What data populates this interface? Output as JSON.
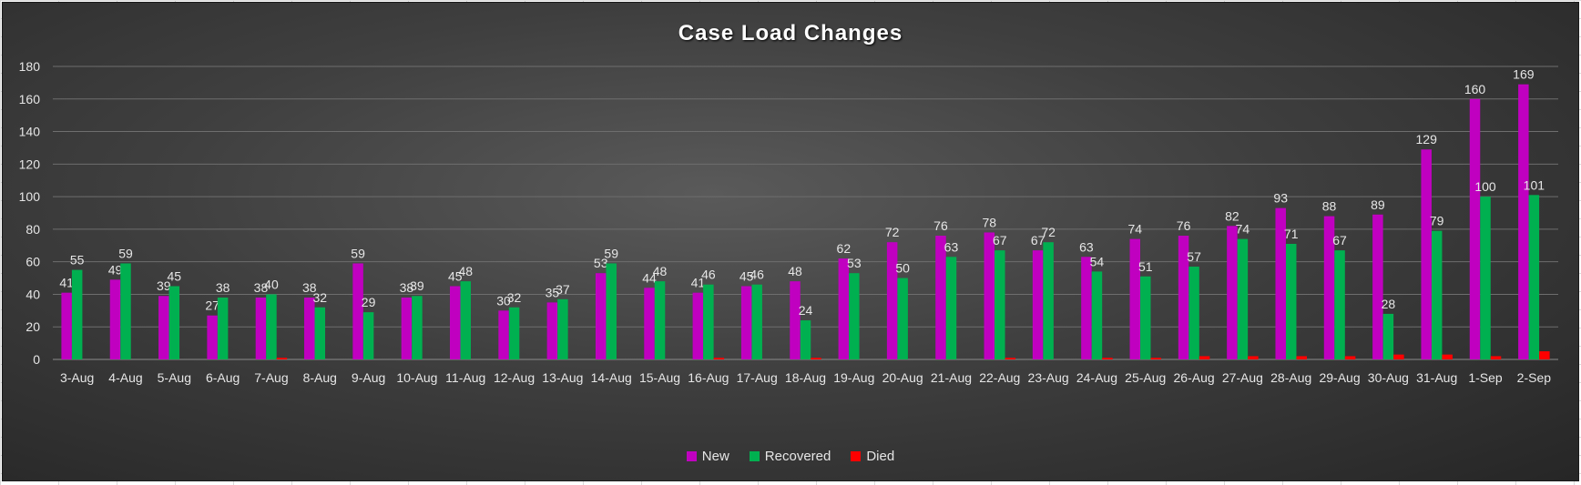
{
  "chart_data": {
    "type": "bar",
    "title": "Case Load Changes",
    "xlabel": "",
    "ylabel": "",
    "ylim": [
      0,
      180
    ],
    "yticks": [
      0,
      20,
      40,
      60,
      80,
      100,
      120,
      140,
      160,
      180
    ],
    "grid": true,
    "legend_position": "bottom",
    "categories": [
      "3-Aug",
      "4-Aug",
      "5-Aug",
      "6-Aug",
      "7-Aug",
      "8-Aug",
      "9-Aug",
      "10-Aug",
      "11-Aug",
      "12-Aug",
      "13-Aug",
      "14-Aug",
      "15-Aug",
      "16-Aug",
      "17-Aug",
      "18-Aug",
      "19-Aug",
      "20-Aug",
      "21-Aug",
      "22-Aug",
      "23-Aug",
      "24-Aug",
      "25-Aug",
      "26-Aug",
      "27-Aug",
      "28-Aug",
      "29-Aug",
      "30-Aug",
      "31-Aug",
      "1-Sep",
      "2-Sep"
    ],
    "series": [
      {
        "name": "New",
        "color": "#c000c0",
        "labeled": true,
        "values": [
          41,
          49,
          39,
          27,
          38,
          38,
          59,
          38,
          45,
          30,
          35,
          53,
          44,
          41,
          45,
          48,
          62,
          72,
          76,
          78,
          67,
          63,
          74,
          76,
          82,
          93,
          88,
          89,
          129,
          160,
          169
        ]
      },
      {
        "name": "Recovered",
        "color": "#00b050",
        "labeled": true,
        "values": [
          55,
          59,
          45,
          38,
          40,
          32,
          29,
          39,
          48,
          32,
          37,
          59,
          48,
          46,
          46,
          24,
          53,
          50,
          63,
          67,
          72,
          54,
          51,
          57,
          74,
          71,
          67,
          28,
          79,
          100,
          101
        ]
      },
      {
        "name": "Died",
        "color": "#ff0000",
        "labeled": false,
        "values": [
          0,
          0,
          0,
          0,
          1,
          0,
          0,
          0,
          0,
          0,
          0,
          0,
          0,
          1,
          0,
          1,
          0,
          0,
          0,
          1,
          0,
          1,
          1,
          2,
          2,
          2,
          2,
          3,
          3,
          2,
          5
        ]
      }
    ]
  }
}
